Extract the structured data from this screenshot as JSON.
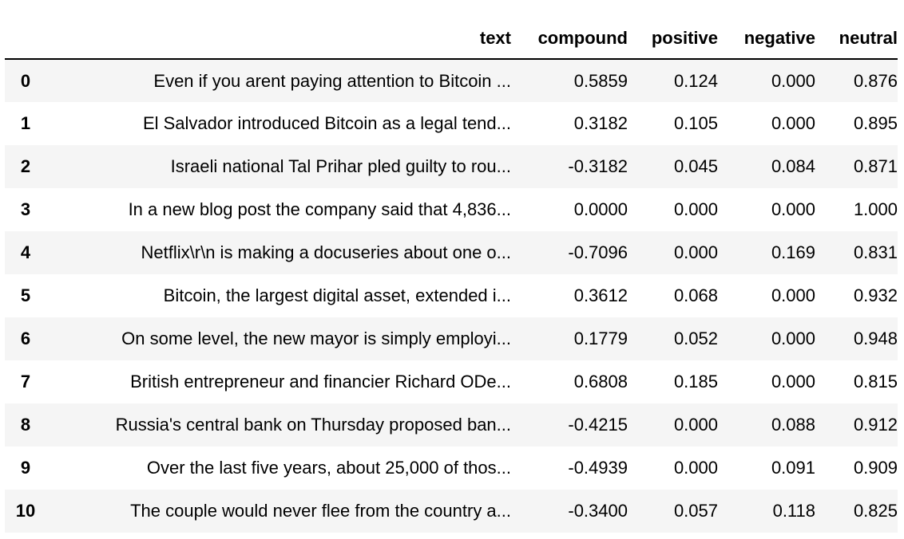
{
  "table": {
    "columns": [
      "",
      "text",
      "compound",
      "positive",
      "negative",
      "neutral"
    ],
    "rows": [
      {
        "index": "0",
        "text": "Even if you arent paying attention to Bitcoin ...",
        "compound": "0.5859",
        "positive": "0.124",
        "negative": "0.000",
        "neutral": "0.876"
      },
      {
        "index": "1",
        "text": "El Salvador introduced Bitcoin as a legal tend...",
        "compound": "0.3182",
        "positive": "0.105",
        "negative": "0.000",
        "neutral": "0.895"
      },
      {
        "index": "2",
        "text": "Israeli national Tal Prihar pled guilty to rou...",
        "compound": "-0.3182",
        "positive": "0.045",
        "negative": "0.084",
        "neutral": "0.871"
      },
      {
        "index": "3",
        "text": "In a new blog post the company said that 4,836...",
        "compound": "0.0000",
        "positive": "0.000",
        "negative": "0.000",
        "neutral": "1.000"
      },
      {
        "index": "4",
        "text": "Netflix\\r\\n is making a docuseries about one o...",
        "compound": "-0.7096",
        "positive": "0.000",
        "negative": "0.169",
        "neutral": "0.831"
      },
      {
        "index": "5",
        "text": "Bitcoin, the largest digital asset, extended i...",
        "compound": "0.3612",
        "positive": "0.068",
        "negative": "0.000",
        "neutral": "0.932"
      },
      {
        "index": "6",
        "text": "On some level, the new mayor is simply employi...",
        "compound": "0.1779",
        "positive": "0.052",
        "negative": "0.000",
        "neutral": "0.948"
      },
      {
        "index": "7",
        "text": "British entrepreneur and financier Richard ODe...",
        "compound": "0.6808",
        "positive": "0.185",
        "negative": "0.000",
        "neutral": "0.815"
      },
      {
        "index": "8",
        "text": "Russia's central bank on Thursday proposed ban...",
        "compound": "-0.4215",
        "positive": "0.000",
        "negative": "0.088",
        "neutral": "0.912"
      },
      {
        "index": "9",
        "text": "Over the last five years, about 25,000 of thos...",
        "compound": "-0.4939",
        "positive": "0.000",
        "negative": "0.091",
        "neutral": "0.909"
      },
      {
        "index": "10",
        "text": "The couple would never flee from the country a...",
        "compound": "-0.3400",
        "positive": "0.057",
        "negative": "0.118",
        "neutral": "0.825"
      }
    ]
  }
}
